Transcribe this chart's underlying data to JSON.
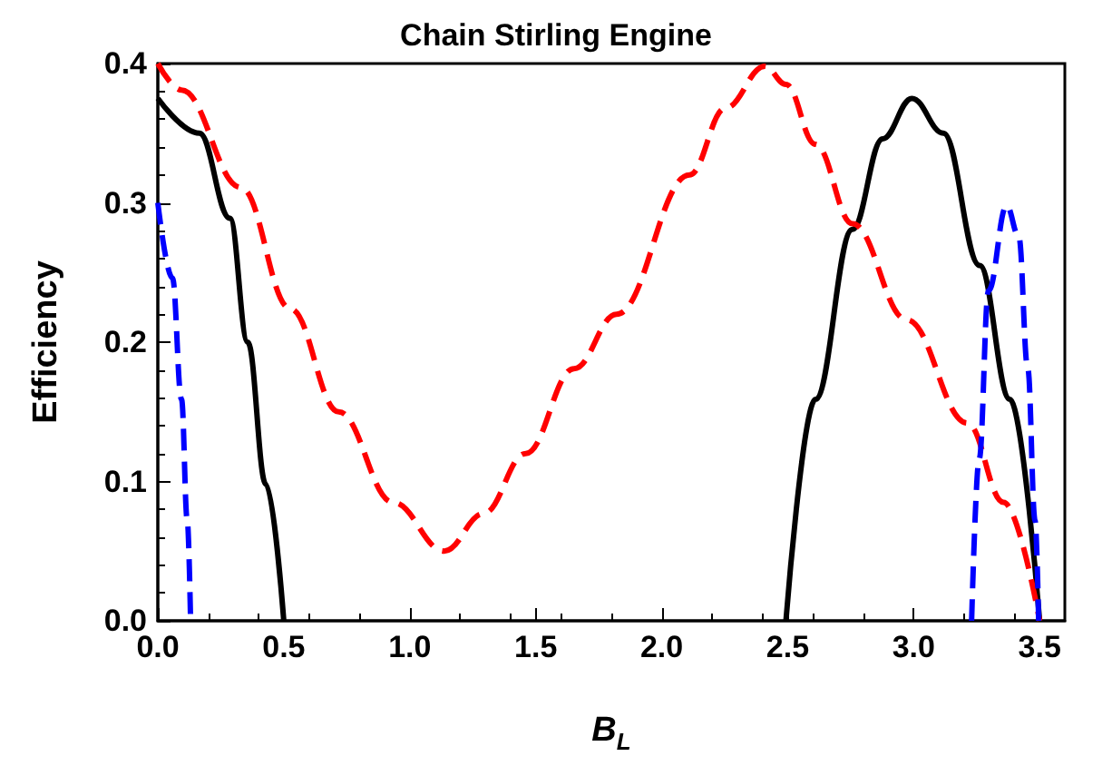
{
  "chart_data": {
    "type": "line",
    "title": "Chain Stirling Engine",
    "xlabel": "B$_{L}$",
    "ylabel": "Efficiency",
    "xlim": [
      0,
      3.6
    ],
    "ylim": [
      0,
      0.4
    ],
    "xticks": [
      {
        "value": 0,
        "label": "0.0"
      },
      {
        "value": 0.5,
        "label": "0.5"
      },
      {
        "value": 1,
        "label": "1.0"
      },
      {
        "value": 1.5,
        "label": "1.5"
      },
      {
        "value": 2,
        "label": "2.0"
      },
      {
        "value": 2.5,
        "label": "2.5"
      },
      {
        "value": 3,
        "label": "3.0"
      },
      {
        "value": 3.5,
        "label": "3.5"
      }
    ],
    "yticks": [
      {
        "value": 0,
        "label": "0.0"
      },
      {
        "value": 0.1,
        "label": "0.1"
      },
      {
        "value": 0.2,
        "label": "0.2"
      },
      {
        "value": 0.3,
        "label": "0.3"
      },
      {
        "value": 0.4,
        "label": "0.4"
      }
    ],
    "grid": false,
    "marker": "none",
    "series": [
      {
        "color": "#000000",
        "line_style": "solid",
        "x": [
          0,
          0.165,
          0.286,
          0.357,
          0.429,
          0.5,
          1.5,
          2.493,
          2.61,
          2.757,
          2.877,
          2.993,
          3.118,
          3.262,
          3.382,
          3.5
        ],
        "values": [
          0.375,
          0.35,
          0.289,
          0.2,
          0.098,
          0,
          null,
          0,
          0.159,
          0.281,
          0.346,
          0.375,
          0.35,
          0.255,
          0.159,
          0
        ]
      },
      {
        "color": "#ff0000",
        "line_style": "dashed",
        "x": [
          0,
          0.094,
          0.33,
          0.526,
          0.718,
          0.934,
          1.137,
          1.293,
          1.46,
          1.652,
          1.821,
          2.11,
          2.253,
          2.409,
          2.493,
          2.61,
          2.757,
          2.973,
          3.213,
          3.357,
          3.5
        ],
        "values": [
          0.4,
          0.381,
          0.311,
          0.224,
          0.15,
          0.085,
          0.05,
          0.077,
          0.12,
          0.181,
          0.22,
          0.32,
          0.368,
          0.398,
          0.385,
          0.342,
          0.285,
          0.216,
          0.142,
          0.085,
          0
        ]
      },
      {
        "color": "#0000ff",
        "line_style": "dashed",
        "x": [
          0,
          0.058,
          0.094,
          0.117,
          0.13,
          1.5,
          3.23,
          3.26,
          3.297,
          3.369,
          3.417,
          3.453,
          3.482,
          3.496
        ],
        "values": [
          0.3,
          0.246,
          0.159,
          0.072,
          0,
          null,
          0,
          0.116,
          0.237,
          0.298,
          0.276,
          0.181,
          0.072,
          0
        ]
      }
    ]
  }
}
